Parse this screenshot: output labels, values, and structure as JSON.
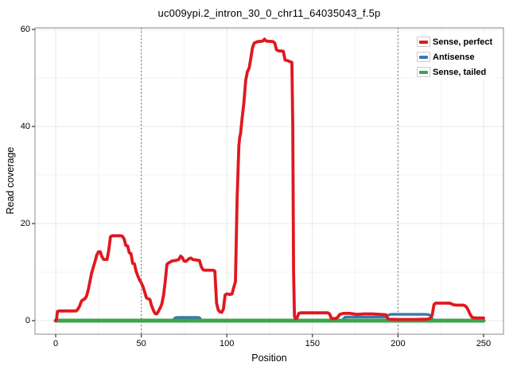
{
  "title": "uc009ypi.2_intron_30_0_chr11_64035043_f.5p",
  "chart_data": {
    "type": "line",
    "title": "uc009ypi.2_intron_30_0_chr11_64035043_f.5p",
    "xlabel": "Position",
    "ylabel": "Read coverage",
    "xlim": [
      0,
      250
    ],
    "ylim": [
      0,
      60
    ],
    "x_major_ticks": [
      0,
      50,
      100,
      150,
      200,
      250
    ],
    "x_minor_ticks": [
      25,
      75,
      125,
      175,
      225
    ],
    "y_major_ticks": [
      0,
      20,
      40,
      60
    ],
    "y_minor_ticks": [
      10,
      30,
      50
    ],
    "dotted_vlines": [
      50,
      200
    ],
    "grid": "major+minor",
    "legend_position": "top-right-inside",
    "colors": {
      "major_grid": "#e7e7e7",
      "minor_grid": "#f3f3f3",
      "panel_border": "#888888",
      "dotted_line": "#6e6e6e",
      "tick": "#333333"
    },
    "series": [
      {
        "name": "Antisense",
        "color": "#3a77b0",
        "stroke_width": 3.4,
        "points": [
          [
            0,
            0
          ],
          [
            68,
            0
          ],
          [
            69,
            0.3
          ],
          [
            70,
            0.6
          ],
          [
            71,
            0.65
          ],
          [
            83,
            0.65
          ],
          [
            84,
            0.6
          ],
          [
            85,
            0.2
          ],
          [
            86,
            0
          ],
          [
            167,
            0
          ],
          [
            168,
            0.3
          ],
          [
            169,
            0.7
          ],
          [
            170,
            0.75
          ],
          [
            192,
            0.75
          ],
          [
            193,
            0.8
          ],
          [
            194,
            1.0
          ],
          [
            195,
            1.25
          ],
          [
            196,
            1.3
          ],
          [
            216,
            1.3
          ],
          [
            218,
            1.25
          ],
          [
            219,
            1.0
          ],
          [
            220,
            0.4
          ],
          [
            221,
            0
          ],
          [
            250,
            0
          ]
        ]
      },
      {
        "name": "Sense, tailed",
        "color": "#3fa44a",
        "stroke_width": 5,
        "points": [
          [
            0,
            0
          ],
          [
            250,
            0
          ]
        ]
      },
      {
        "name": "Sense, perfect",
        "color": "#e0181f",
        "stroke_width": 3.8,
        "points": [
          [
            0,
            0
          ],
          [
            0.5,
            0.3
          ],
          [
            1,
            1.9
          ],
          [
            2,
            2
          ],
          [
            12,
            2
          ],
          [
            13,
            2.4
          ],
          [
            14,
            3
          ],
          [
            15,
            4
          ],
          [
            16,
            4.3
          ],
          [
            17,
            4.5
          ],
          [
            18,
            5
          ],
          [
            19,
            6.3
          ],
          [
            20,
            8
          ],
          [
            21,
            9.8
          ],
          [
            22,
            11
          ],
          [
            23,
            12.2
          ],
          [
            24,
            13.5
          ],
          [
            25,
            14.2
          ],
          [
            26,
            14.2
          ],
          [
            27,
            13.2
          ],
          [
            28,
            12.6
          ],
          [
            30,
            12.6
          ],
          [
            31,
            14.5
          ],
          [
            32,
            17.3
          ],
          [
            33,
            17.5
          ],
          [
            38,
            17.5
          ],
          [
            39,
            17.4
          ],
          [
            40,
            16.8
          ],
          [
            41,
            15.5
          ],
          [
            42,
            15.4
          ],
          [
            43,
            14
          ],
          [
            44,
            13.8
          ],
          [
            45,
            11.8
          ],
          [
            46,
            11.7
          ],
          [
            47,
            10.2
          ],
          [
            48,
            9.2
          ],
          [
            49,
            8.4
          ],
          [
            50,
            7.8
          ],
          [
            51,
            7
          ],
          [
            52,
            5.9
          ],
          [
            53,
            4.7
          ],
          [
            54,
            4.5
          ],
          [
            55,
            4.4
          ],
          [
            56,
            3.1
          ],
          [
            57,
            2.2
          ],
          [
            58,
            1.5
          ],
          [
            59,
            1.4
          ],
          [
            60,
            1.9
          ],
          [
            61,
            2.6
          ],
          [
            62,
            3.4
          ],
          [
            63,
            5.2
          ],
          [
            64,
            8
          ],
          [
            65,
            11.6
          ],
          [
            66,
            11.9
          ],
          [
            67,
            12.1
          ],
          [
            68,
            12.3
          ],
          [
            70,
            12.4
          ],
          [
            72,
            12.6
          ],
          [
            73,
            13.3
          ],
          [
            74,
            13
          ],
          [
            75,
            12.3
          ],
          [
            76,
            12.2
          ],
          [
            77,
            12.5
          ],
          [
            78,
            12.8
          ],
          [
            79,
            12.9
          ],
          [
            80,
            12.6
          ],
          [
            82,
            12.5
          ],
          [
            84,
            12.4
          ],
          [
            85,
            11.2
          ],
          [
            86,
            10.5
          ],
          [
            87,
            10.4
          ],
          [
            92,
            10.4
          ],
          [
            93,
            10.2
          ],
          [
            94,
            3.6
          ],
          [
            95,
            2.2
          ],
          [
            96,
            1.8
          ],
          [
            97,
            1.7
          ],
          [
            98,
            2.4
          ],
          [
            99,
            5.3
          ],
          [
            100,
            5.5
          ],
          [
            102,
            5.4
          ],
          [
            103,
            5.5
          ],
          [
            104,
            6.8
          ],
          [
            105,
            8
          ],
          [
            106,
            25
          ],
          [
            107,
            36
          ],
          [
            107.5,
            37.7
          ],
          [
            108,
            38.5
          ],
          [
            109,
            42
          ],
          [
            110,
            45
          ],
          [
            111,
            49.5
          ],
          [
            112,
            51.3
          ],
          [
            113,
            52
          ],
          [
            114,
            54
          ],
          [
            115,
            56.3
          ],
          [
            116,
            57.2
          ],
          [
            118,
            57.5
          ],
          [
            121,
            57.6
          ],
          [
            122,
            58
          ],
          [
            123,
            57.6
          ],
          [
            127,
            57.5
          ],
          [
            128,
            57.2
          ],
          [
            129,
            55.8
          ],
          [
            130,
            55.6
          ],
          [
            133,
            55.5
          ],
          [
            134,
            53.7
          ],
          [
            136,
            53.5
          ],
          [
            138,
            53.2
          ],
          [
            138.5,
            40
          ],
          [
            139,
            10
          ],
          [
            139.5,
            1
          ],
          [
            140,
            0.4
          ],
          [
            141,
            0.5
          ],
          [
            142,
            1.5
          ],
          [
            143,
            1.6
          ],
          [
            159,
            1.6
          ],
          [
            160,
            1.4
          ],
          [
            161,
            0.5
          ],
          [
            163,
            0.4
          ],
          [
            164,
            0.5
          ],
          [
            165,
            0.8
          ],
          [
            166,
            1.3
          ],
          [
            168,
            1.5
          ],
          [
            172,
            1.5
          ],
          [
            176,
            1.3
          ],
          [
            180,
            1.4
          ],
          [
            185,
            1.4
          ],
          [
            190,
            1.3
          ],
          [
            193,
            1.2
          ],
          [
            194,
            0.4
          ],
          [
            195,
            0.3
          ],
          [
            200,
            0.25
          ],
          [
            210,
            0.25
          ],
          [
            217,
            0.3
          ],
          [
            219,
            0.5
          ],
          [
            220,
            1.2
          ],
          [
            221,
            3.3
          ],
          [
            222,
            3.6
          ],
          [
            225,
            3.6
          ],
          [
            230,
            3.6
          ],
          [
            231,
            3.5
          ],
          [
            232,
            3.3
          ],
          [
            234,
            3.2
          ],
          [
            238,
            3.2
          ],
          [
            239,
            3.1
          ],
          [
            240,
            2.8
          ],
          [
            241,
            2.2
          ],
          [
            242,
            1.4
          ],
          [
            243,
            0.8
          ],
          [
            244,
            0.6
          ],
          [
            246,
            0.55
          ],
          [
            250,
            0.55
          ]
        ]
      }
    ]
  },
  "legend": {
    "entries": [
      {
        "label": "Sense, perfect",
        "color": "#e0181f"
      },
      {
        "label": "Antisense",
        "color": "#3a77b0"
      },
      {
        "label": "Sense, tailed",
        "color": "#3fa44a"
      }
    ]
  }
}
